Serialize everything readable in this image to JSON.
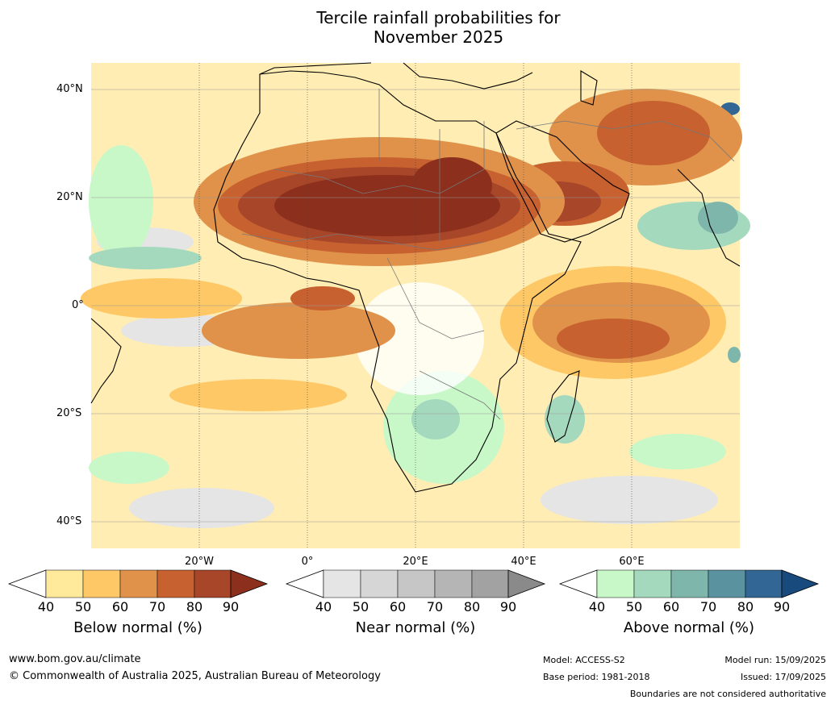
{
  "title_line1": "Tercile rainfall probabilities for",
  "title_line2": "November 2025",
  "lat_labels": [
    "40°N",
    "20°N",
    "0°",
    "20°S",
    "40°S"
  ],
  "lon_labels": [
    "20°W",
    "0°",
    "20°E",
    "40°E",
    "60°E"
  ],
  "legends": [
    {
      "title": "Below normal (%)",
      "ticks": [
        "40",
        "50",
        "60",
        "70",
        "80",
        "90"
      ],
      "colors": [
        "#ffffff",
        "#ffe99b",
        "#fdc865",
        "#e0924a",
        "#c7612f",
        "#a8462a",
        "#8c2f1c"
      ]
    },
    {
      "title": "Near normal (%)",
      "ticks": [
        "40",
        "50",
        "60",
        "70",
        "80",
        "90"
      ],
      "colors": [
        "#ffffff",
        "#e5e5e5",
        "#d6d6d6",
        "#c6c6c6",
        "#b5b5b5",
        "#a2a2a2",
        "#8a8a8a"
      ]
    },
    {
      "title": "Above normal (%)",
      "ticks": [
        "40",
        "50",
        "60",
        "70",
        "80",
        "90"
      ],
      "colors": [
        "#ffffff",
        "#c8f8c8",
        "#a4d9bd",
        "#7fb6ac",
        "#5a92a0",
        "#326795",
        "#184a7e"
      ]
    }
  ],
  "footer": {
    "website": "www.bom.gov.au/climate",
    "copyright": "© Commonwealth of Australia 2025, Australian Bureau of Meteorology",
    "model": "Model: ACCESS-S2",
    "base_period": "Base period: 1981-2018",
    "model_run": "Model run: 15/09/2025",
    "issued": "Issued: 17/09/2025",
    "disclaimer": "Boundaries are not considered authoritative"
  }
}
